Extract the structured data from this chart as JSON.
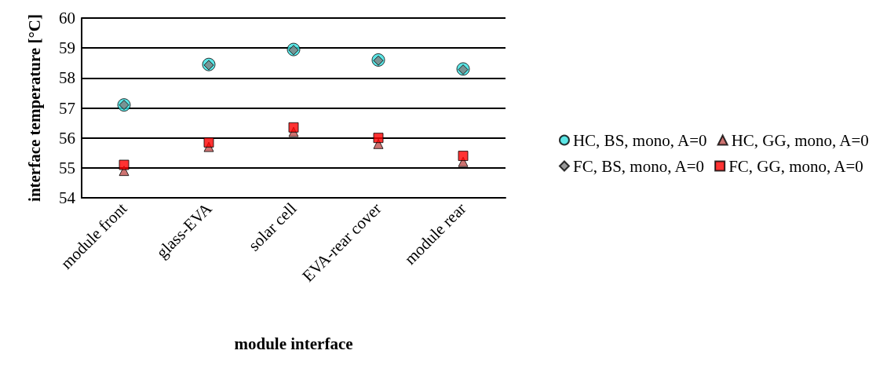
{
  "chart_data": {
    "type": "scatter",
    "xlabel": "module interface",
    "ylabel": "interface temperature [°C]",
    "categories": [
      "module front",
      "glass-EVA",
      "solar cell",
      "EVA-rear cover",
      "module rear"
    ],
    "ylim": [
      54,
      60
    ],
    "yticks": [
      54,
      55,
      56,
      57,
      58,
      59,
      60
    ],
    "grid": "y",
    "legend": "right",
    "series": [
      {
        "name": "HC, BS, mono, A=0",
        "color": "#33e0e0",
        "marker": "circle",
        "values": [
          57.1,
          58.45,
          58.95,
          58.6,
          58.3
        ]
      },
      {
        "name": "HC, GG, mono, A=0",
        "color": "#c0504d",
        "marker": "triangle",
        "values": [
          54.9,
          55.7,
          56.2,
          55.8,
          55.2
        ]
      },
      {
        "name": "FC, BS, mono, A=0",
        "color": "#808080",
        "marker": "diamond",
        "values": [
          57.1,
          58.43,
          58.93,
          58.58,
          58.28
        ]
      },
      {
        "name": "FC, GG, mono, A=0",
        "color": "#ff0000",
        "marker": "square",
        "values": [
          55.1,
          55.85,
          56.35,
          56.0,
          55.4
        ]
      }
    ]
  }
}
